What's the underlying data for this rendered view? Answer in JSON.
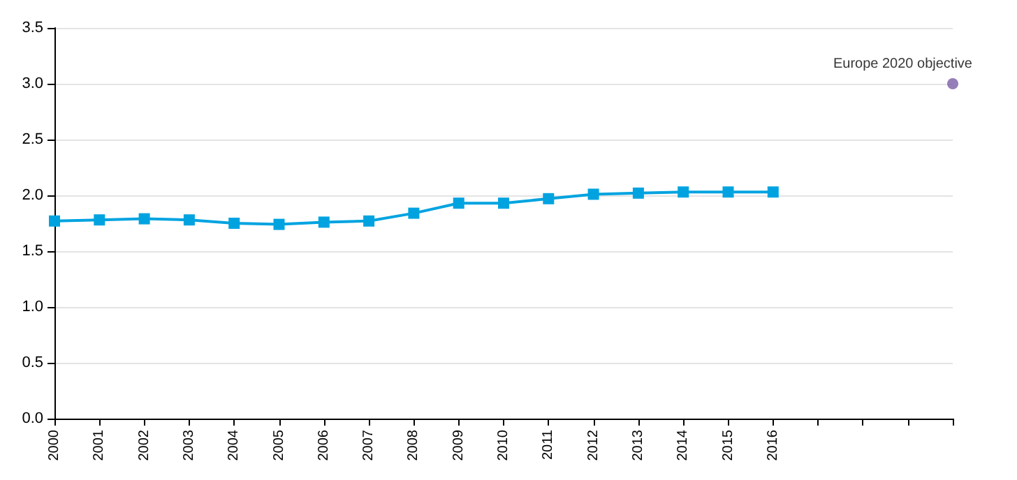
{
  "chart_data": {
    "type": "line",
    "categories": [
      "2000",
      "2001",
      "2002",
      "2003",
      "2004",
      "2005",
      "2006",
      "2007",
      "2008",
      "2009",
      "2010",
      "2011",
      "2012",
      "2013",
      "2014",
      "2015",
      "2016",
      null,
      null,
      null,
      null
    ],
    "series": [
      {
        "color": "#00a3e0",
        "marker": "square",
        "values": [
          1.77,
          1.78,
          1.79,
          1.78,
          1.75,
          1.74,
          1.76,
          1.77,
          1.84,
          1.93,
          1.93,
          1.97,
          2.01,
          2.02,
          2.03,
          2.03,
          2.03,
          null,
          null,
          null,
          null
        ]
      },
      {
        "name": "Europe 2020 objective",
        "type": "scatter",
        "color": "#7b5ea7",
        "marker": "circle",
        "values": [
          null,
          null,
          null,
          null,
          null,
          null,
          null,
          null,
          null,
          null,
          null,
          null,
          null,
          null,
          null,
          null,
          null,
          null,
          null,
          null,
          3.0
        ]
      }
    ],
    "ylim": [
      0,
      3.5
    ],
    "yticks": [
      {
        "value": 0,
        "label": "0.0"
      },
      0.5,
      {
        "value": 1,
        "label": "1.0"
      },
      1.5,
      {
        "value": 2,
        "label": "2.0"
      },
      2.5,
      {
        "value": 3,
        "label": "3.0"
      },
      3.5
    ],
    "grid": "y"
  }
}
